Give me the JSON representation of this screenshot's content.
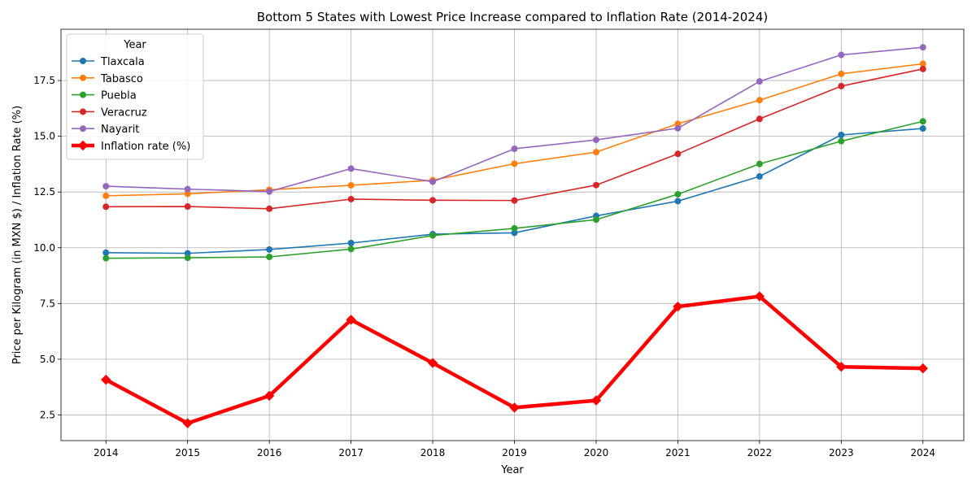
{
  "chart_data": {
    "type": "line",
    "title": "Bottom 5 States with Lowest Price Increase compared to Inflation Rate (2014-2024)",
    "xlabel": "Year",
    "ylabel": "Price per Kilogram (in MXN $) / Inflation Rate (%)",
    "x": [
      2014,
      2015,
      2016,
      2017,
      2018,
      2019,
      2020,
      2021,
      2022,
      2023,
      2024
    ],
    "xlim": [
      2013.45,
      2024.5
    ],
    "ylim": [
      1.35,
      19.8
    ],
    "yticks": [
      2.5,
      5.0,
      7.5,
      10.0,
      12.5,
      15.0,
      17.5
    ],
    "ytick_labels": [
      "2.5",
      "5.0",
      "7.5",
      "10.0",
      "12.5",
      "15.0",
      "17.5"
    ],
    "grid": true,
    "legend": {
      "title": "Year",
      "position": "upper-left"
    },
    "series": [
      {
        "name": "Tlaxcala",
        "color": "#1f77b4",
        "marker": "circle",
        "values": [
          9.78,
          9.75,
          9.92,
          10.21,
          10.61,
          10.67,
          11.43,
          12.09,
          13.2,
          15.06,
          15.35
        ]
      },
      {
        "name": "Tabasco",
        "color": "#ff7f0e",
        "marker": "circle",
        "values": [
          12.33,
          12.42,
          12.6,
          12.8,
          13.03,
          13.77,
          14.29,
          15.56,
          16.62,
          17.8,
          18.25
        ]
      },
      {
        "name": "Puebla",
        "color": "#2ca02c",
        "marker": "circle",
        "values": [
          9.53,
          9.55,
          9.59,
          9.94,
          10.55,
          10.87,
          11.26,
          12.4,
          13.76,
          14.78,
          15.67
        ]
      },
      {
        "name": "Veracruz",
        "color": "#d62728",
        "marker": "circle",
        "values": [
          11.84,
          11.85,
          11.75,
          12.18,
          12.13,
          12.12,
          12.81,
          14.21,
          15.78,
          17.25,
          18.02
        ]
      },
      {
        "name": "Nayarit",
        "color": "#9467bd",
        "marker": "circle",
        "values": [
          12.76,
          12.63,
          12.52,
          13.55,
          12.96,
          14.44,
          14.84,
          15.36,
          17.46,
          18.65,
          18.99
        ]
      },
      {
        "name": "Inflation rate (%)",
        "color": "#ff0000",
        "marker": "diamond",
        "width": "thick",
        "values": [
          4.08,
          2.13,
          3.36,
          6.77,
          4.83,
          2.83,
          3.15,
          7.36,
          7.82,
          4.66,
          4.59
        ]
      }
    ]
  }
}
